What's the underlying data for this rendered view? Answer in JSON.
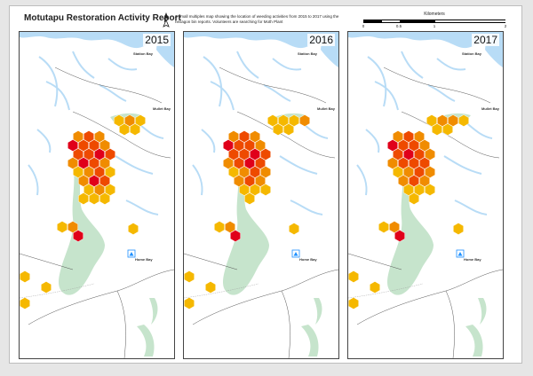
{
  "title": "Motutapu Restoration Activity Report",
  "description": "A small multiples map showing the location of weeding activities from 2015 to 2017 using the hexagon bin reports. Volunteers are searching for Moth Plant",
  "scale_bar": {
    "label": "Kilometers",
    "ticks": [
      "0",
      "0.5",
      "1",
      "2"
    ]
  },
  "north_arrow": "north-arrow-icon",
  "colors": {
    "water": "#b8dcf6",
    "vegetation": "#c6e4cc",
    "low": "#f5b800",
    "mid": "#f08c00",
    "high": "#ee4a00",
    "max": "#e0001a"
  },
  "places": {
    "station_bay": "Station Bay",
    "mullet_bay": "Mullet Bay",
    "home_bay": "Home Bay"
  },
  "panels": [
    {
      "year": "2015"
    },
    {
      "year": "2016"
    },
    {
      "year": "2017"
    }
  ]
}
